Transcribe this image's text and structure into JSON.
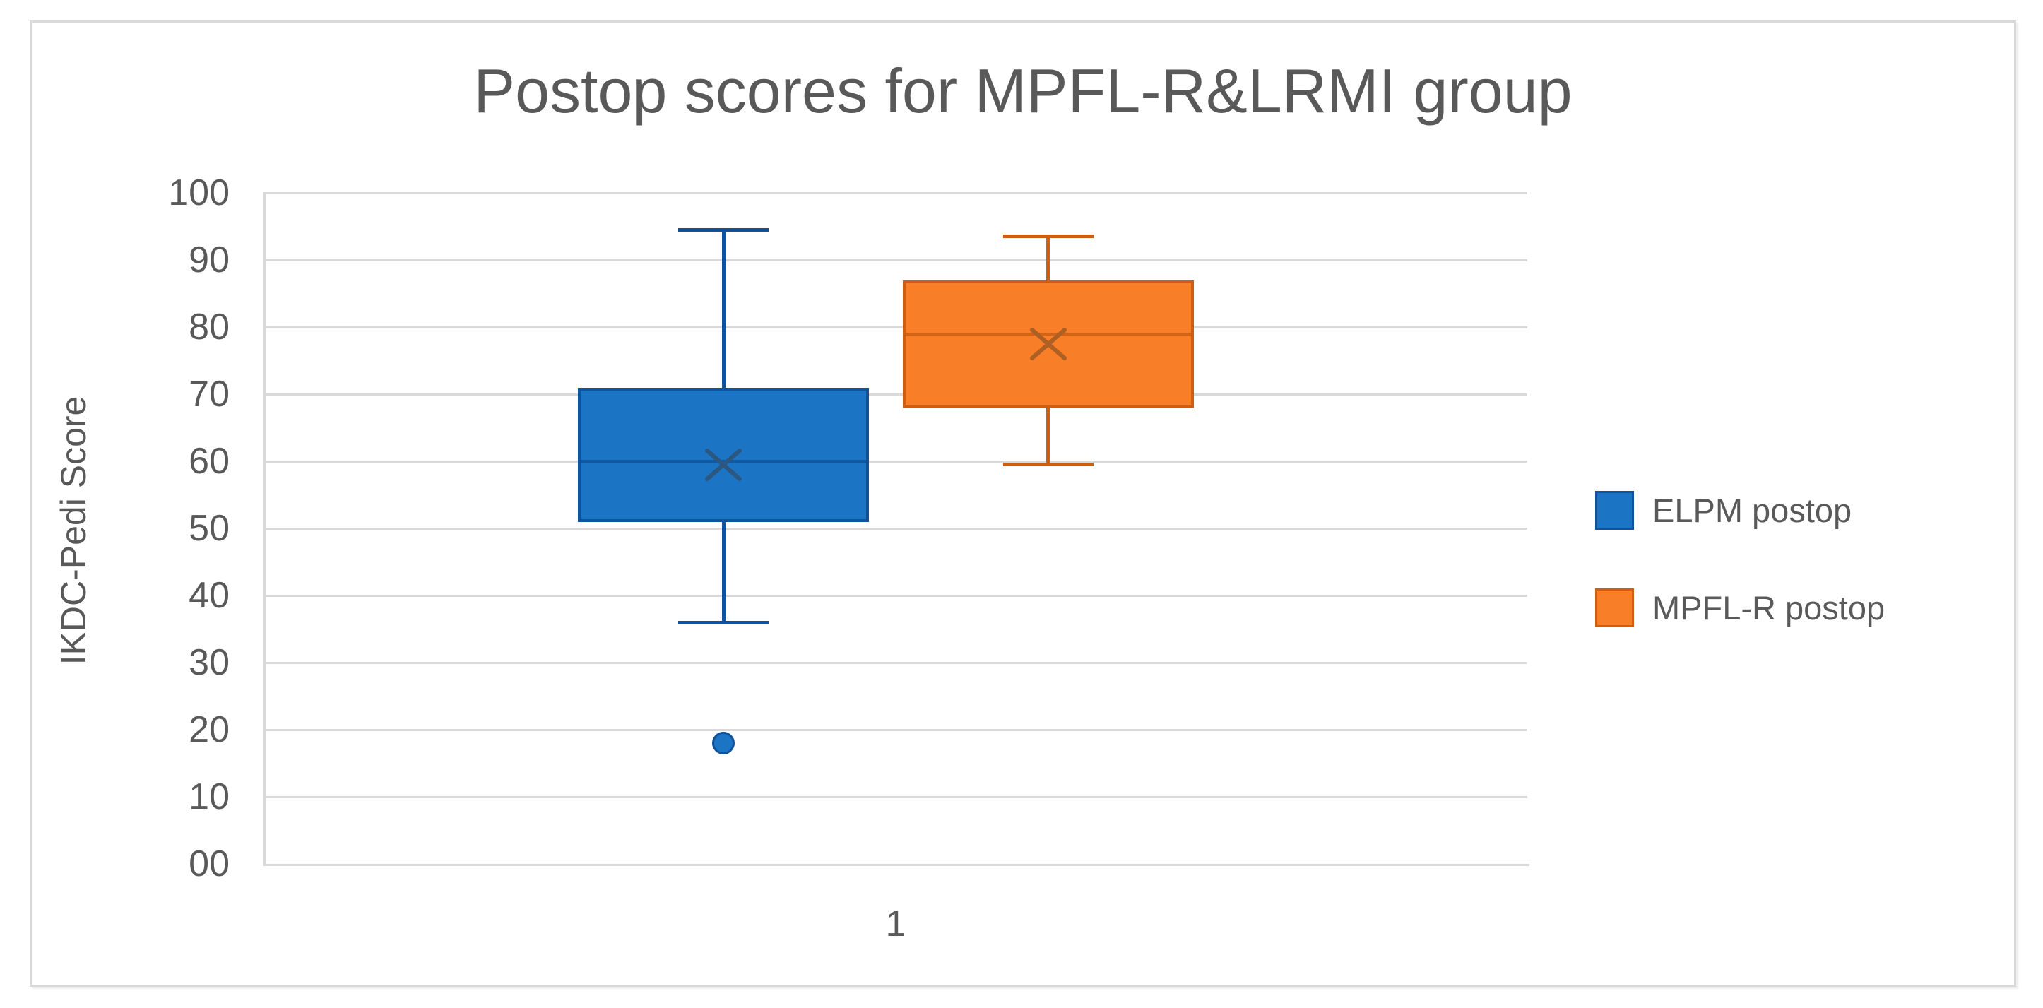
{
  "chart_data": {
    "type": "boxplot",
    "title": "Postop scores for MPFL-R&LRMI group",
    "ylabel": "IKDC-Pedi Score",
    "xlabel": "",
    "categories": [
      "1"
    ],
    "ylim": [
      0,
      100
    ],
    "ytick_step": 10,
    "ytick_labels": [
      "100",
      "90",
      "80",
      "70",
      "60",
      "50",
      "40",
      "30",
      "20",
      "10",
      "00"
    ],
    "grid": true,
    "legend_position": "right",
    "legend": [
      "ELPM postop",
      "MPFL-R postop"
    ],
    "series": [
      {
        "name": "ELPM postop",
        "fill_color": "#1B74C4",
        "border_color": "#10539A",
        "mean_marker_color": "#2B5781",
        "box": {
          "whisker_min": 36,
          "q1": 51,
          "median": 60,
          "mean": 59.5,
          "q3": 71,
          "whisker_max": 94.5
        },
        "outliers": [
          18
        ]
      },
      {
        "name": "MPFL-R postop",
        "fill_color": "#F87E28",
        "border_color": "#CE5F12",
        "mean_marker_color": "#AD5F24",
        "box": {
          "whisker_min": 59.5,
          "q1": 68,
          "median": 79,
          "mean": 77.5,
          "q3": 87,
          "whisker_max": 93.5
        },
        "outliers": []
      }
    ],
    "colors": {
      "axis_text": "#595959",
      "gridline": "#D9D9D9",
      "frame_border": "#D9D9D9",
      "background": "#FFFFFF"
    }
  }
}
